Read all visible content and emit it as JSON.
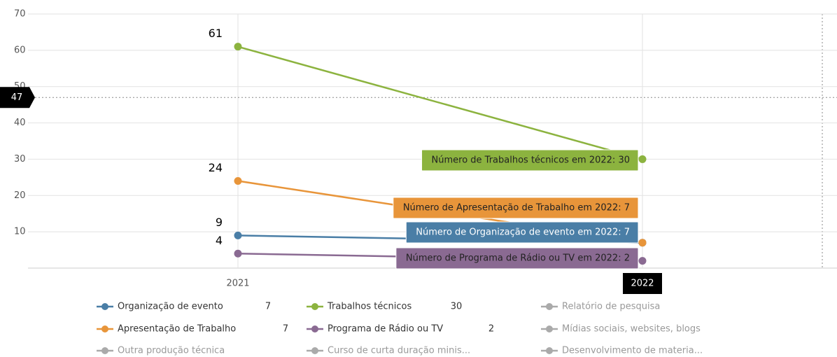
{
  "chart_data": {
    "type": "line",
    "categories": [
      "2021",
      "2022"
    ],
    "ylim": [
      0,
      70
    ],
    "yticks": [
      10,
      20,
      30,
      40,
      50,
      60,
      70
    ],
    "grid": true,
    "crosshair": {
      "y": 47,
      "x": "2022"
    },
    "series": [
      {
        "name": "Organização de evento",
        "color": "#4a7ea6",
        "values": [
          9,
          7
        ],
        "visible": true,
        "tooltip": "Número de Organização de evento em 2022: 7"
      },
      {
        "name": "Trabalhos técnicos",
        "color": "#8cb33f",
        "values": [
          61,
          30
        ],
        "visible": true,
        "tooltip": "Número de Trabalhos técnicos em 2022: 30"
      },
      {
        "name": "Relatório de pesquisa",
        "color": "#9a9a9a",
        "values": [
          null,
          null
        ],
        "visible": false
      },
      {
        "name": "Apresentação de Trabalho",
        "color": "#e8953a",
        "values": [
          24,
          7
        ],
        "visible": true,
        "tooltip": "Número de Apresentação de Trabalho em 2022: 7"
      },
      {
        "name": "Programa de Rádio ou TV",
        "color": "#8a6a92",
        "values": [
          4,
          2
        ],
        "visible": true,
        "tooltip": "Número de Programa de Rádio ou TV em 2022: 2"
      },
      {
        "name": "Mídias sociais, websites, blogs",
        "color": "#9a9a9a",
        "values": [
          null,
          null
        ],
        "visible": false
      },
      {
        "name": "Outra produção técnica",
        "color": "#9a9a9a",
        "values": [
          null,
          null
        ],
        "visible": false
      },
      {
        "name": "Curso de curta duração minis...",
        "color": "#9a9a9a",
        "values": [
          null,
          null
        ],
        "visible": false
      },
      {
        "name": "Desenvolvimento de materia...",
        "color": "#9a9a9a",
        "values": [
          null,
          null
        ],
        "visible": false
      }
    ]
  }
}
